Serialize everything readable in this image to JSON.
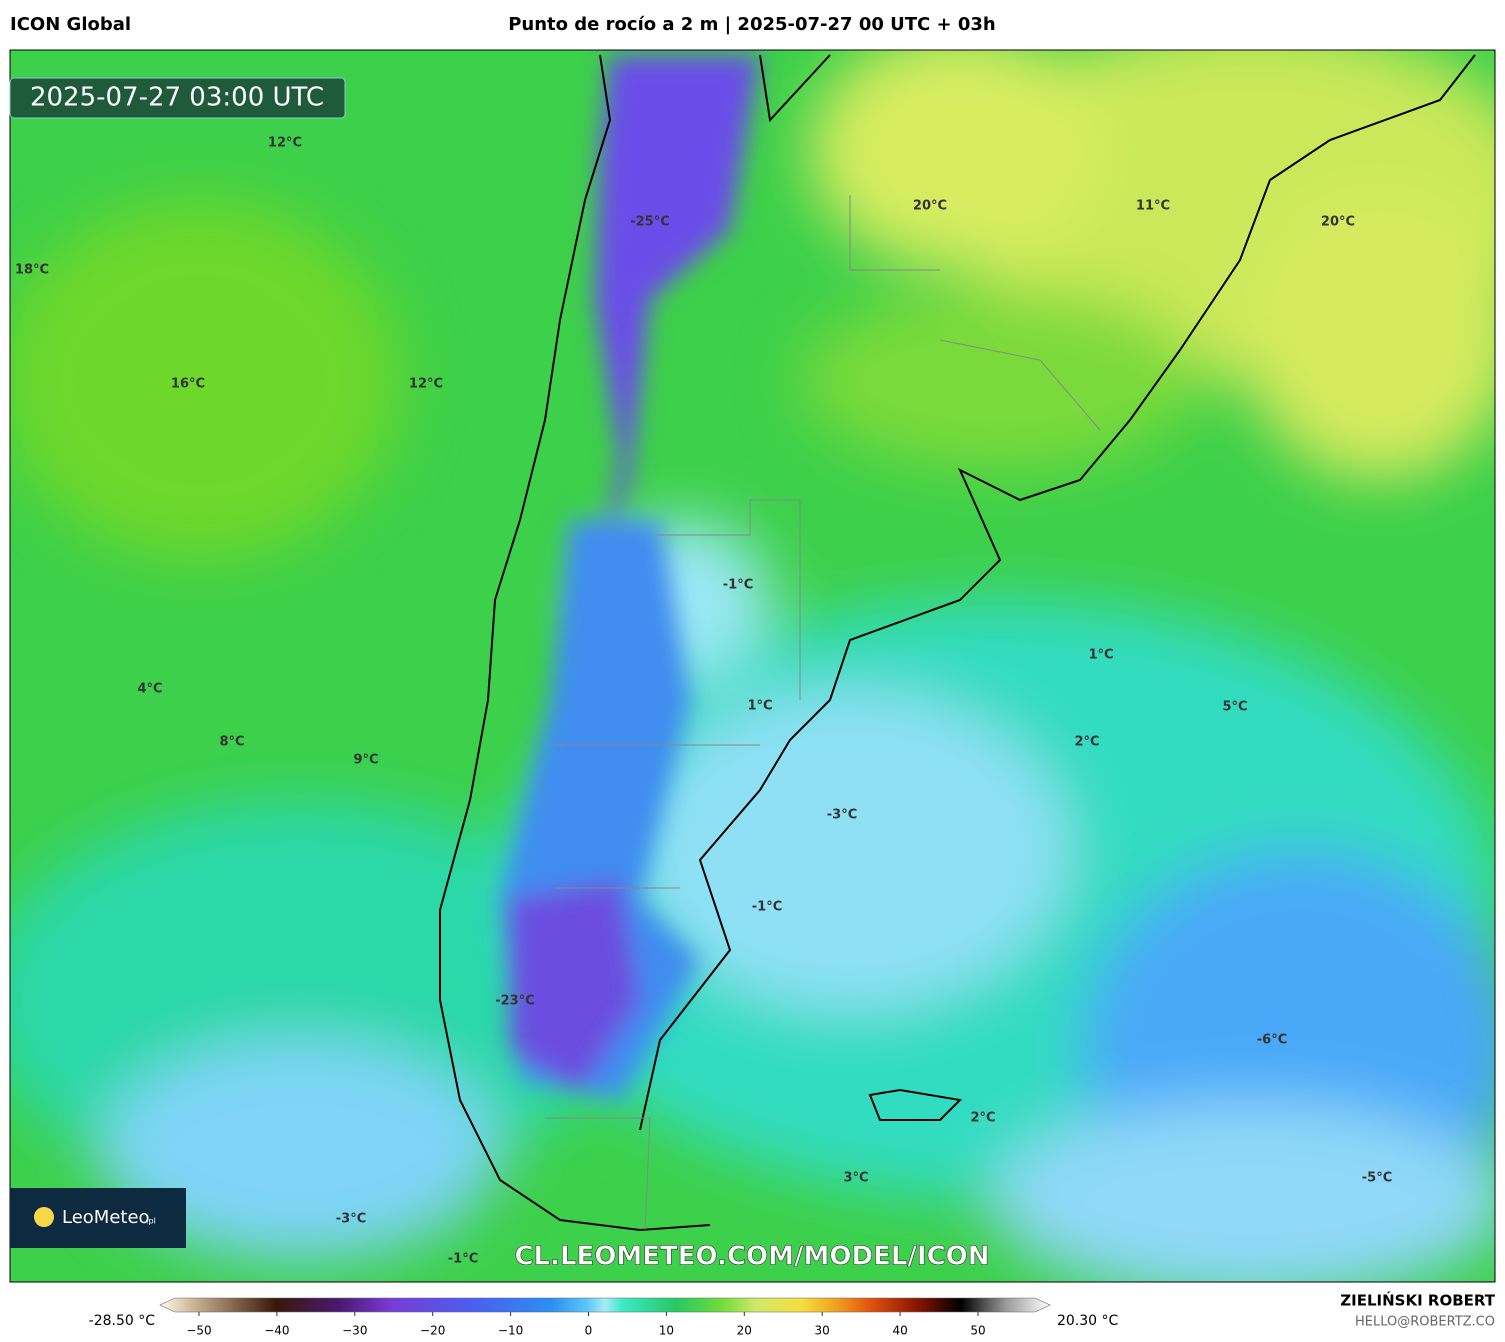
{
  "header": {
    "model": "ICON Global",
    "title": "Punto de rocío a 2 m | 2025-07-27 00 UTC + 03h"
  },
  "map": {
    "timestamp": "2025-07-27 03:00 UTC",
    "labels": [
      "12°C",
      "18°C",
      "16°C",
      "12°C",
      "-25°C",
      "20°C",
      "11°C",
      "20°C",
      "-1°C",
      "1°C",
      "4°C",
      "1°C",
      "5°C",
      "8°C",
      "2°C",
      "9°C",
      "-3°C",
      "-1°C",
      "-23°C",
      "-6°C",
      "2°C",
      "3°C",
      "-5°C",
      "-3°C",
      "-1°C"
    ],
    "watermark": "CL.LEOMETEO.COM/MODEL/ICON",
    "logo": {
      "name": "LeoMeteo",
      "suffix": ".pl"
    }
  },
  "colorbar": {
    "min": "-28.50 °C",
    "max": "20.30 °C",
    "ticks": [
      "−50",
      "−40",
      "−30",
      "−20",
      "−10",
      "0",
      "10",
      "20",
      "30",
      "40",
      "50"
    ]
  },
  "footer": {
    "author": "ZIELIŃSKI ROBERT",
    "email": "HELLO@ROBERTZ.CO"
  }
}
